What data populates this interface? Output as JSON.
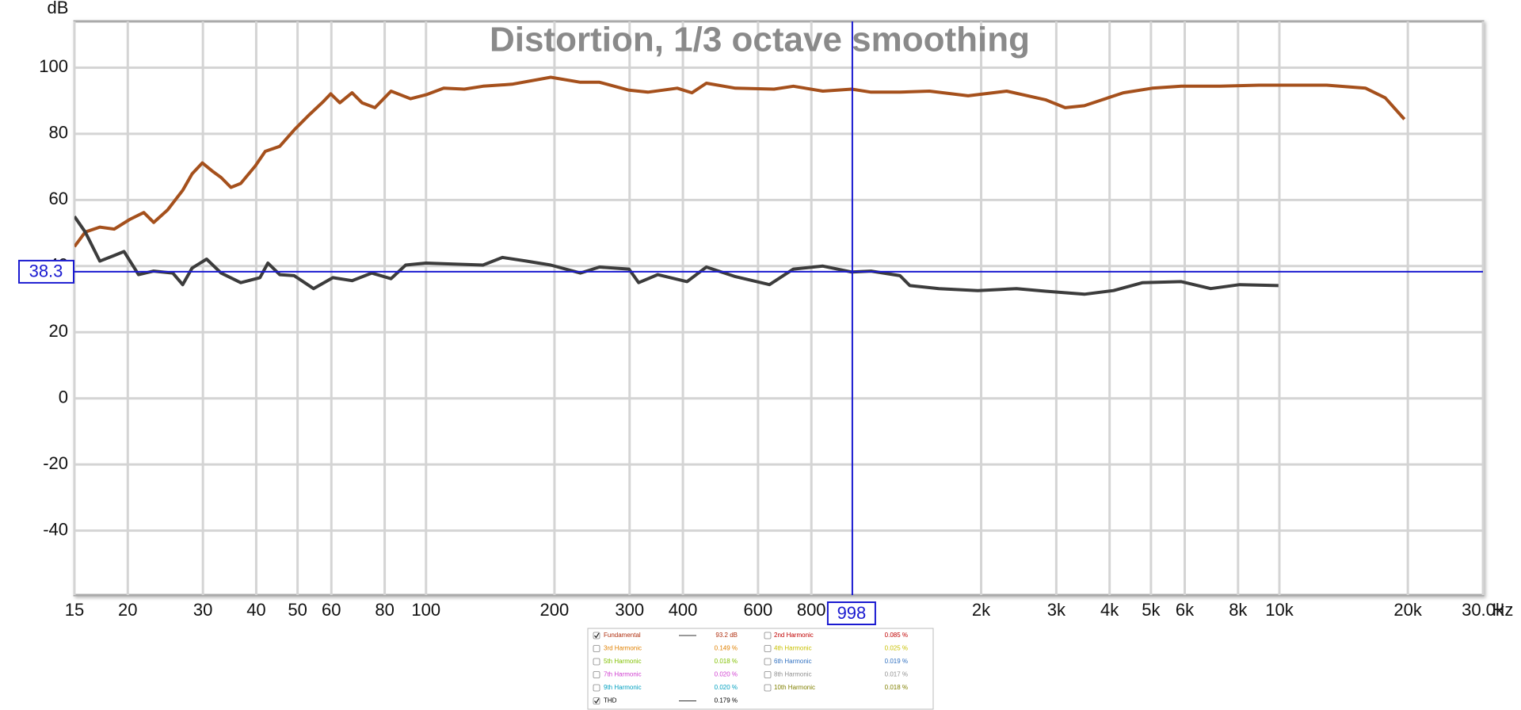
{
  "chart_data": {
    "type": "line",
    "title": "Distortion, 1/3 octave smoothing",
    "y_unit": "dB",
    "x_unit": "Hz",
    "log_x": true,
    "grid": true,
    "xlim": [
      15,
      30000
    ],
    "ylim": [
      -59.5,
      114
    ],
    "xticks": [
      15,
      20,
      30,
      40,
      50,
      60,
      80,
      100,
      200,
      300,
      400,
      600,
      800,
      {
        "value": 2000,
        "label": "2k"
      },
      {
        "value": 3000,
        "label": "3k"
      },
      {
        "value": 4000,
        "label": "4k"
      },
      {
        "value": 5000,
        "label": "5k"
      },
      {
        "value": 6000,
        "label": "6k"
      },
      {
        "value": 8000,
        "label": "8k"
      },
      {
        "value": 10000,
        "label": "10k"
      },
      {
        "value": 20000,
        "label": "20k"
      },
      {
        "value": 30000,
        "label": "30.0k"
      }
    ],
    "yticks": [
      -40,
      -20,
      0,
      20,
      40,
      60,
      80,
      100
    ],
    "cursor": {
      "x": 998,
      "y": 38.3,
      "color": "#1a1ad0"
    },
    "series": [
      {
        "name": "Fundamental",
        "color": "#a5501c",
        "label_color": "#b03010",
        "shown": true,
        "readout": {
          "value": 93.2,
          "label": "93.2 dB"
        },
        "x": [
          15,
          15.9,
          17.2,
          18.6,
          20.2,
          21.8,
          23,
          24.8,
          26.9,
          28.3,
          29.9,
          31.5,
          33.1,
          34.9,
          36.8,
          39.8,
          42,
          45.4,
          49.1,
          53.1,
          57.4,
          59.8,
          62.8,
          67.1,
          70.8,
          75.9,
          82.8,
          92,
          100,
          110,
          123,
          136,
          159,
          196,
          230,
          255,
          299,
          331,
          388,
          420,
          454,
          531,
          654,
          726,
          851,
          995,
          1104,
          1291,
          1513,
          1864,
          2296,
          2831,
          3147,
          3491,
          4306,
          5035,
          5890,
          7261,
          8954,
          10470,
          12910,
          15920,
          17700,
          19630
        ],
        "values": [
          45.9,
          50.3,
          51.8,
          51.2,
          54.1,
          56.2,
          53.2,
          57,
          62.9,
          67.9,
          71.2,
          68.8,
          66.8,
          63.8,
          65,
          70.3,
          74.7,
          76.2,
          81.2,
          85.6,
          89.7,
          92.1,
          89.4,
          92.4,
          89.4,
          87.9,
          92.9,
          90.6,
          91.8,
          93.8,
          93.5,
          94.4,
          95,
          97.1,
          95.6,
          95.6,
          93.2,
          92.6,
          93.8,
          92.4,
          95.3,
          93.8,
          93.5,
          94.4,
          92.9,
          93.5,
          92.6,
          92.6,
          92.9,
          91.5,
          92.9,
          90.3,
          87.9,
          88.5,
          92.4,
          93.8,
          94.4,
          94.4,
          94.7,
          94.7,
          94.7,
          93.8,
          90.9,
          84.4
        ]
      },
      {
        "name": "2nd Harmonic",
        "color": "#c00000",
        "label_color": "#c00000",
        "shown": false,
        "readout": {
          "value": 0.085,
          "label": "0.085 %"
        }
      },
      {
        "name": "3rd Harmonic",
        "color": "#e08000",
        "label_color": "#e08000",
        "shown": false,
        "readout": {
          "value": 0.149,
          "label": "0.149 %"
        }
      },
      {
        "name": "4th Harmonic",
        "color": "#c8c000",
        "label_color": "#c8c000",
        "shown": false,
        "readout": {
          "value": 0.025,
          "label": "0.025 %"
        }
      },
      {
        "name": "5th Harmonic",
        "color": "#80c000",
        "label_color": "#80c000",
        "shown": false,
        "readout": {
          "value": 0.018,
          "label": "0.018 %"
        }
      },
      {
        "name": "6th Harmonic",
        "color": "#3070c0",
        "label_color": "#3070c0",
        "shown": false,
        "readout": {
          "value": 0.019,
          "label": "0.019 %"
        }
      },
      {
        "name": "7th Harmonic",
        "color": "#d040d0",
        "label_color": "#d040d0",
        "shown": false,
        "readout": {
          "value": 0.02,
          "label": "0.020 %"
        }
      },
      {
        "name": "8th Harmonic",
        "color": "#909090",
        "label_color": "#909090",
        "shown": false,
        "readout": {
          "value": 0.017,
          "label": "0.017 %"
        }
      },
      {
        "name": "9th Harmonic",
        "color": "#00a0c0",
        "label_color": "#00a0c0",
        "shown": false,
        "readout": {
          "value": 0.02,
          "label": "0.020 %"
        }
      },
      {
        "name": "10th Harmonic",
        "color": "#808000",
        "label_color": "#808000",
        "shown": false,
        "readout": {
          "value": 0.018,
          "label": "0.018 %"
        }
      },
      {
        "name": "THD",
        "color": "#3c3c3c",
        "label_color": "#000000",
        "shown": true,
        "readout": {
          "value": 0.179,
          "label": "0.179 %"
        },
        "x": [
          15,
          15.9,
          17.2,
          18.6,
          19.6,
          21.2,
          23,
          25.5,
          26.9,
          28.3,
          30.6,
          33.1,
          36.8,
          40.8,
          42.6,
          45.4,
          49.1,
          54.5,
          60.5,
          67.1,
          74.6,
          82.8,
          89.6,
          100,
          116,
          136,
          151,
          172,
          196,
          230,
          255,
          299,
          315,
          349,
          409,
          454,
          531,
          638,
          726,
          851,
          995,
          1104,
          1291,
          1361,
          1592,
          1964,
          2421,
          2831,
          3491,
          4085,
          4782,
          5890,
          6902,
          8072,
          9950
        ],
        "values": [
          55,
          50.3,
          41.5,
          43.2,
          44.4,
          37.4,
          38.5,
          37.9,
          34.4,
          39.4,
          42.1,
          37.9,
          35,
          36.5,
          40.9,
          37.4,
          37.1,
          33.2,
          36.5,
          35.6,
          37.9,
          36.2,
          40.3,
          40.9,
          40.6,
          40.3,
          42.6,
          41.5,
          40.3,
          37.9,
          39.7,
          39.1,
          35,
          37.4,
          35.3,
          39.7,
          36.8,
          34.4,
          39.1,
          40,
          38.2,
          38.5,
          37.1,
          34.1,
          33.2,
          32.6,
          33.2,
          32.4,
          31.5,
          32.6,
          35,
          35.3,
          33.2,
          34.4,
          34.1
        ]
      }
    ]
  }
}
